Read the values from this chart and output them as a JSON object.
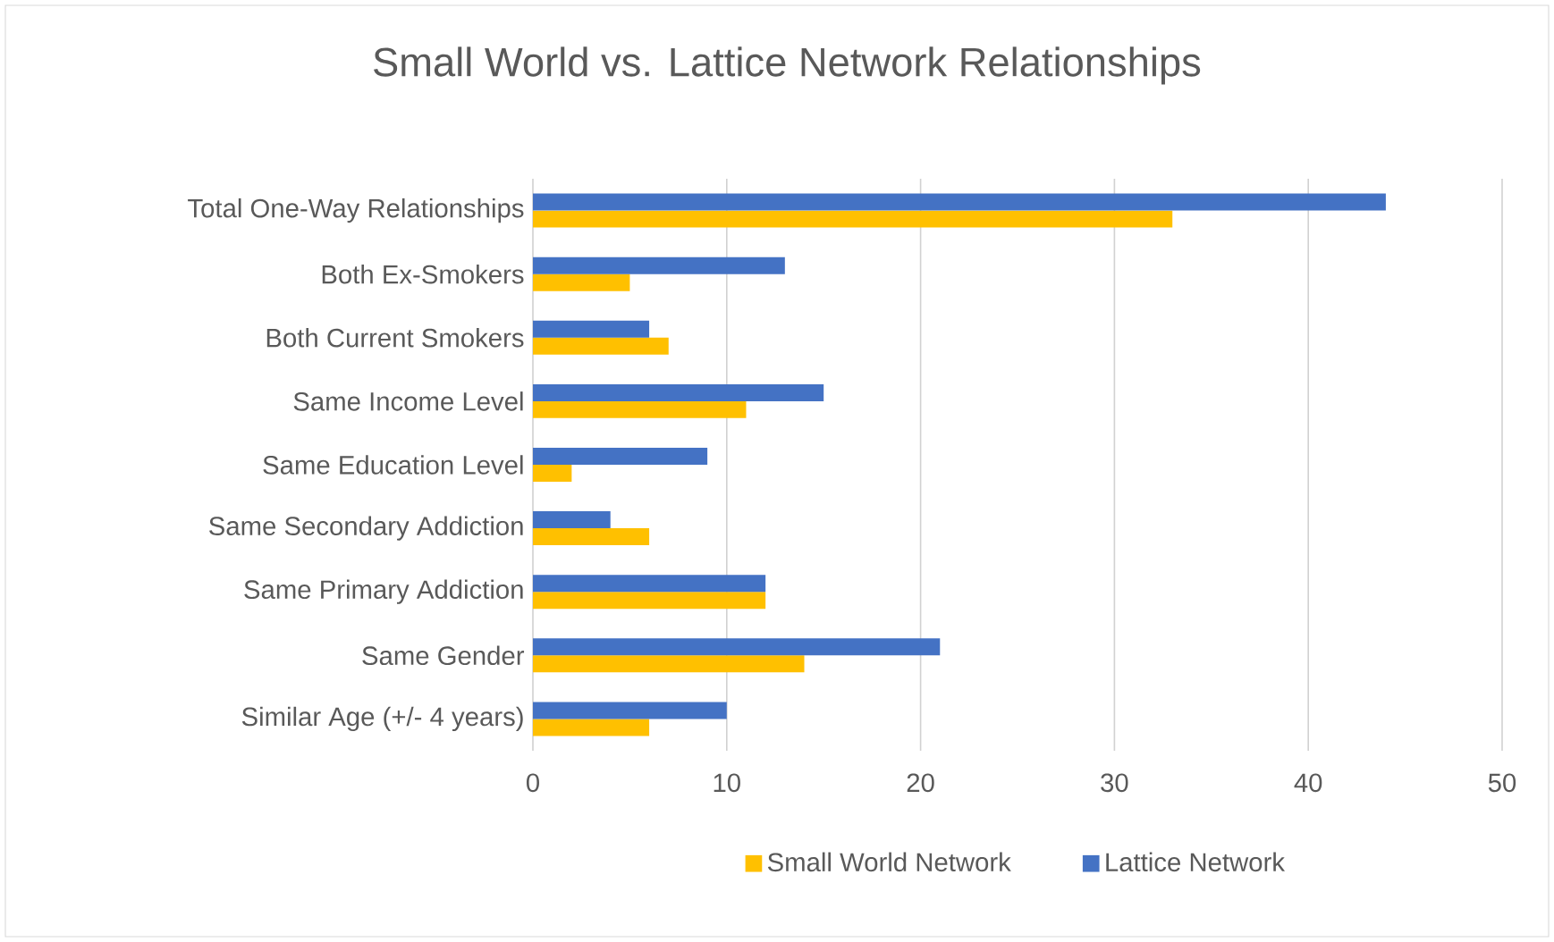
{
  "chart_data": {
    "type": "bar",
    "orientation": "horizontal",
    "title": "Small World vs. Lattice Network Relationships",
    "categories": [
      "Total One-Way Relationships",
      "Both Ex-Smokers",
      "Both Current Smokers",
      "Same Income Level",
      "Same Education Level",
      "Same Secondary Addiction",
      "Same Primary Addiction",
      "Same Gender",
      "Similar Age (+/- 4 years)"
    ],
    "series": [
      {
        "name": "Small World Network",
        "color": "#ffc000",
        "values": [
          33,
          5,
          7,
          11,
          2,
          6,
          12,
          14,
          6
        ]
      },
      {
        "name": "Lattice Network",
        "color": "#4472c4",
        "values": [
          44,
          13,
          6,
          15,
          9,
          4,
          12,
          21,
          10
        ]
      }
    ],
    "xlim": [
      0,
      50
    ],
    "xticks": [
      0,
      10,
      20,
      30,
      40,
      50
    ],
    "grid": "x",
    "legend": "bottom"
  }
}
